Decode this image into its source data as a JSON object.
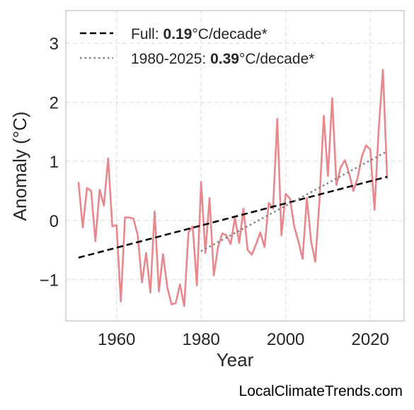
{
  "chart_data": {
    "type": "line",
    "title": "",
    "xlabel": "Year",
    "ylabel": "Anomaly (°C)",
    "xlim": [
      1948,
      2028
    ],
    "ylim": [
      -1.7,
      3.55
    ],
    "xticks": [
      1960,
      1980,
      2000,
      2020
    ],
    "yticks": [
      -1,
      0,
      1,
      2,
      3
    ],
    "ytick_labels": [
      "−1",
      "0",
      "1",
      "2",
      "3"
    ],
    "grid": true,
    "legend_position": "top-left",
    "series": [
      {
        "name": "Anomaly",
        "color": "#e8888c",
        "x": [
          1951,
          1952,
          1953,
          1954,
          1955,
          1956,
          1957,
          1958,
          1959,
          1960,
          1961,
          1962,
          1963,
          1964,
          1965,
          1966,
          1967,
          1968,
          1969,
          1970,
          1971,
          1972,
          1973,
          1974,
          1975,
          1976,
          1977,
          1978,
          1979,
          1980,
          1981,
          1982,
          1983,
          1984,
          1985,
          1986,
          1987,
          1988,
          1989,
          1990,
          1991,
          1992,
          1993,
          1994,
          1995,
          1996,
          1997,
          1998,
          1999,
          2000,
          2001,
          2002,
          2003,
          2004,
          2005,
          2006,
          2007,
          2008,
          2009,
          2010,
          2011,
          2012,
          2013,
          2014,
          2015,
          2016,
          2017,
          2018,
          2019,
          2020,
          2021,
          2022,
          2023,
          2024
        ],
        "y": [
          0.65,
          -0.12,
          0.55,
          0.5,
          -0.35,
          0.52,
          0.25,
          1.05,
          -0.1,
          -0.08,
          -1.37,
          0.05,
          0.05,
          0.03,
          -0.25,
          -1.05,
          -0.55,
          -1.22,
          0.15,
          -1.2,
          -0.57,
          -1.13,
          -1.42,
          -1.4,
          -1.08,
          -1.45,
          -0.2,
          -0.1,
          -1.1,
          0.65,
          -0.55,
          0.38,
          -0.93,
          -0.45,
          -0.22,
          -0.25,
          -0.4,
          0.05,
          -0.38,
          0.2,
          -0.5,
          -0.58,
          -0.4,
          -0.2,
          -0.45,
          0.3,
          0.2,
          1.72,
          -0.25,
          0.45,
          0.37,
          -0.1,
          -0.35,
          -0.65,
          0.38,
          -0.35,
          -0.7,
          0.35,
          1.77,
          0.75,
          2.07,
          0.6,
          0.9,
          1.02,
          0.8,
          0.5,
          0.72,
          1.08,
          1.27,
          1.2,
          0.18,
          1.55,
          2.55,
          0.7
        ]
      },
      {
        "name": "Full",
        "style": "dashed",
        "color": "#000000",
        "x": [
          1951,
          2024
        ],
        "y": [
          -0.63,
          0.74
        ]
      },
      {
        "name": "1980-2025",
        "style": "dotted",
        "color": "#808080",
        "x": [
          1980,
          2024
        ],
        "y": [
          -0.52,
          1.17
        ]
      }
    ],
    "legend": [
      {
        "prefix": "Full: ",
        "value": "0.19",
        "suffix": "°C/decade*",
        "style": "dashed",
        "color": "#000000"
      },
      {
        "prefix": "1980-2025: ",
        "value": "0.39",
        "suffix": "°C/decade*",
        "style": "dotted",
        "color": "#808080"
      }
    ]
  },
  "footer": {
    "credit": "LocalClimateTrends.com"
  }
}
